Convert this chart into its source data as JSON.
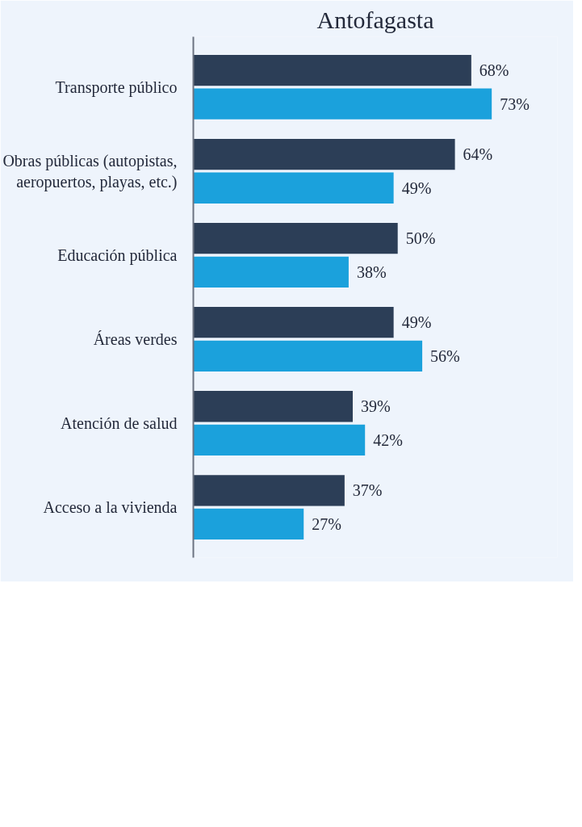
{
  "chart_data": {
    "type": "bar",
    "orientation": "horizontal",
    "title": "Antofagasta",
    "categories": [
      "Transporte público",
      "Obras públicas (autopistas, aeropuertos, playas, etc.)",
      "Educación pública",
      "Áreas verdes",
      "Atención de salud",
      "Acceso a la vivienda"
    ],
    "series": [
      {
        "color": "#2c3e57",
        "values": [
          68,
          64,
          50,
          49,
          39,
          37
        ],
        "value_labels": [
          "68%",
          "64%",
          "50%",
          "49%",
          "39%",
          "37%"
        ]
      },
      {
        "color": "#1ba1dc",
        "values": [
          73,
          49,
          38,
          56,
          42,
          27
        ],
        "value_labels": [
          "73%",
          "49%",
          "38%",
          "56%",
          "42%",
          "27%"
        ]
      }
    ]
  }
}
